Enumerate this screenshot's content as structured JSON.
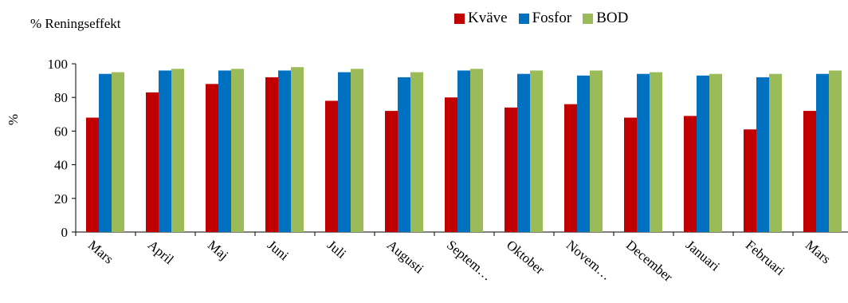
{
  "chart_data": {
    "type": "bar",
    "title": "% Reningseffekt",
    "ylabel": "%",
    "xlabel": "",
    "ylim": [
      0,
      100
    ],
    "yticks": [
      0,
      20,
      40,
      60,
      80,
      100
    ],
    "grid": false,
    "legend_position": "top",
    "categories": [
      "Mars",
      "April",
      "Maj",
      "Juni",
      "Juli",
      "Augusti",
      "Septem…",
      "Oktober",
      "Novem…",
      "December",
      "Januari",
      "Februari",
      "Mars"
    ],
    "series": [
      {
        "name": "Kväve",
        "color": "#c00000",
        "values": [
          68,
          83,
          88,
          92,
          78,
          72,
          80,
          74,
          76,
          68,
          69,
          61,
          72
        ]
      },
      {
        "name": "Fosfor",
        "color": "#0070c0",
        "values": [
          94,
          96,
          96,
          96,
          95,
          92,
          96,
          94,
          93,
          94,
          93,
          92,
          94
        ]
      },
      {
        "name": "BOD",
        "color": "#9bbb59",
        "values": [
          95,
          97,
          97,
          98,
          97,
          95,
          97,
          96,
          96,
          95,
          94,
          94,
          96
        ]
      }
    ]
  }
}
